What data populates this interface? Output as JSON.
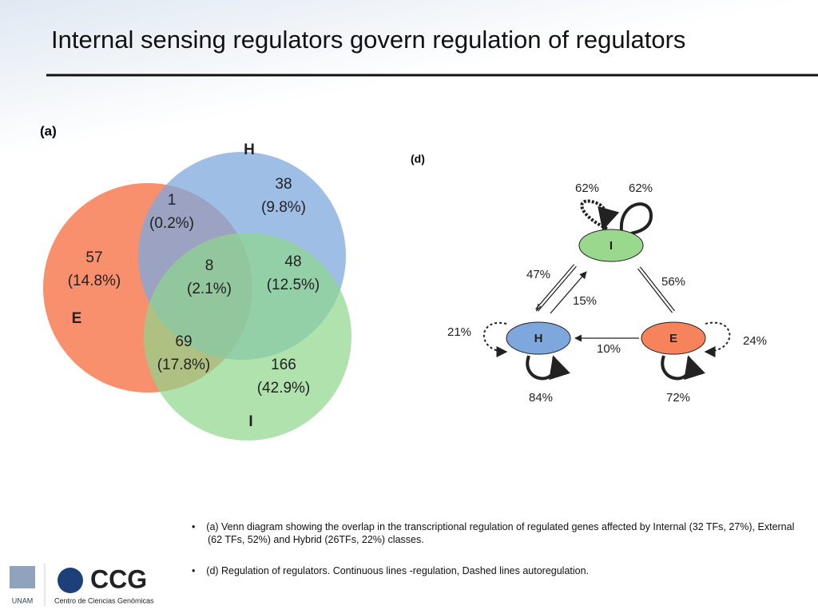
{
  "title": "Internal sensing regulators govern regulation of regulators",
  "venn": {
    "label": "(a)",
    "sets": [
      {
        "name": "H"
      },
      {
        "name": "E"
      },
      {
        "name": "I"
      }
    ],
    "regions": [
      {
        "count": "1",
        "percent": "(0.2%)"
      },
      {
        "count": "38",
        "percent": "(9.8%)"
      },
      {
        "count": "57",
        "percent": "(14.8%)"
      },
      {
        "count": "8",
        "percent": "(2.1%)"
      },
      {
        "count": "48",
        "percent": "(12.5%)"
      },
      {
        "count": "69",
        "percent": "(17.8%)"
      },
      {
        "count": "166",
        "percent": "(42.9%)"
      }
    ]
  },
  "network": {
    "label": "(d)",
    "nodes": [
      {
        "label": "I"
      },
      {
        "label": "H"
      },
      {
        "label": "E"
      }
    ],
    "edges": [
      {
        "label": "62%"
      },
      {
        "label": "62%"
      },
      {
        "label": "47%"
      },
      {
        "label": "15%"
      },
      {
        "label": "56%"
      },
      {
        "label": "21%"
      },
      {
        "label": "10%"
      },
      {
        "label": "24%"
      },
      {
        "label": "84%"
      },
      {
        "label": "72%"
      }
    ]
  },
  "bullets": [
    "(a) Venn diagram showing the overlap in the transcriptional regulation of regulated genes affected by Internal (32 TFs, 27%), External (62 TFs, 52%) and Hybrid (26TFs, 22%) classes.",
    "(d) Regulation of regulators.  Continuous lines -regulation, Dashed lines autoregulation."
  ],
  "logos": {
    "unam": "UNAM",
    "ccg": "CCG",
    "ccg_name": "Centro de Ciencias Genómicas"
  }
}
